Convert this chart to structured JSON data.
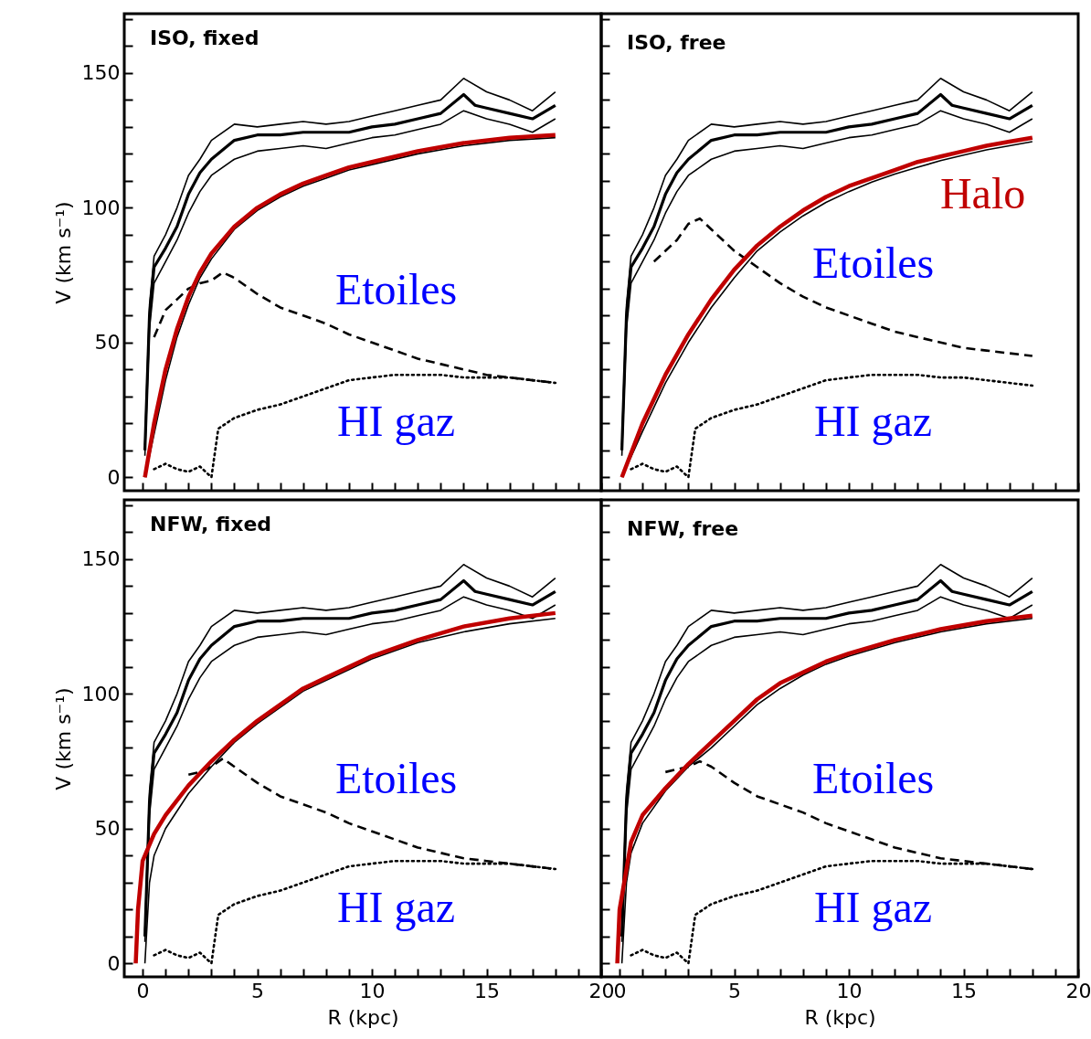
{
  "chart_data": [
    {
      "type": "line",
      "title": "ISO, fixed",
      "ylabel": "V (km s⁻¹)",
      "xlim": [
        -0.8,
        20
      ],
      "ylim": [
        -5,
        172
      ],
      "tick_labels": "y",
      "grid": false,
      "marker": "none",
      "xticks": [
        {
          "value": 0,
          "label": null
        },
        {
          "value": 1,
          "label": null
        },
        {
          "value": 2,
          "label": null
        },
        {
          "value": 3,
          "label": null
        },
        {
          "value": 4,
          "label": null
        },
        {
          "value": 5,
          "label": null
        },
        {
          "value": 6,
          "label": null
        },
        {
          "value": 7,
          "label": null
        },
        {
          "value": 8,
          "label": null
        },
        {
          "value": 9,
          "label": null
        },
        {
          "value": 10,
          "label": null
        },
        {
          "value": 11,
          "label": null
        },
        {
          "value": 12,
          "label": null
        },
        {
          "value": 13,
          "label": null
        },
        {
          "value": 14,
          "label": null
        },
        {
          "value": 15,
          "label": null
        },
        {
          "value": 16,
          "label": null
        },
        {
          "value": 17,
          "label": null
        },
        {
          "value": 18,
          "label": null
        },
        {
          "value": 19,
          "label": null
        },
        {
          "value": 20,
          "label": null
        }
      ],
      "yticks": [
        0,
        {
          "value": 10,
          "label": null
        },
        {
          "value": 20,
          "label": null
        },
        {
          "value": 30,
          "label": null
        },
        {
          "value": 40,
          "label": null
        },
        50,
        {
          "value": 60,
          "label": null
        },
        {
          "value": 70,
          "label": null
        },
        {
          "value": 80,
          "label": null
        },
        {
          "value": 90,
          "label": null
        },
        100,
        {
          "value": 110,
          "label": null
        },
        {
          "value": 120,
          "label": null
        },
        {
          "value": 130,
          "label": null
        },
        {
          "value": 140,
          "label": null
        },
        150,
        {
          "value": 160,
          "label": null
        },
        {
          "value": 170,
          "label": null
        }
      ],
      "series": [
        {
          "color": "#000000",
          "line_style": "solid",
          "x": [
            0.1,
            0.3,
            0.5,
            1,
            1.5,
            2,
            2.5,
            3,
            4,
            5,
            6,
            7,
            8,
            9,
            10,
            11,
            12,
            13,
            14,
            14.5,
            15,
            16,
            17,
            18
          ],
          "values": [
            10,
            60,
            78,
            85,
            93,
            105,
            113,
            118,
            125,
            127,
            127,
            128,
            128,
            128,
            130,
            131,
            133,
            135,
            142,
            138,
            137,
            135,
            133,
            138
          ]
        },
        {
          "color": "#000000",
          "line_style": "solid",
          "x": [
            0.1,
            0.3,
            0.5,
            1,
            1.5,
            2,
            2.5,
            3,
            4,
            5,
            6,
            7,
            8,
            9,
            10,
            11,
            12,
            13,
            14,
            15,
            16,
            17,
            18
          ],
          "values": [
            12,
            64,
            82,
            90,
            100,
            112,
            118,
            125,
            131,
            130,
            131,
            132,
            131,
            132,
            134,
            136,
            138,
            140,
            148,
            143,
            140,
            136,
            143
          ]
        },
        {
          "color": "#000000",
          "line_style": "solid",
          "x": [
            0.1,
            0.3,
            0.5,
            1,
            1.5,
            2,
            2.5,
            3,
            4,
            5,
            6,
            7,
            8,
            9,
            10,
            11,
            12,
            13,
            14,
            15,
            16,
            17,
            18
          ],
          "values": [
            8,
            55,
            72,
            80,
            88,
            98,
            106,
            112,
            118,
            121,
            122,
            123,
            122,
            124,
            126,
            127,
            129,
            131,
            136,
            133,
            131,
            128,
            133
          ]
        },
        {
          "color": "#000000",
          "line_style": "solid",
          "x": [
            0.1,
            0.5,
            1,
            1.5,
            2,
            2.5,
            3,
            4,
            5,
            6,
            7,
            8,
            9,
            10,
            12,
            14,
            16,
            18
          ],
          "values": [
            0,
            16,
            36,
            52,
            64,
            74,
            81,
            92,
            99,
            104,
            108,
            111,
            114,
            116,
            120,
            123,
            125,
            126
          ]
        },
        {
          "name": "HI gaz",
          "color": "#000000",
          "line_style": "dotted",
          "x": [
            0.5,
            1,
            1.5,
            2,
            2.5,
            3,
            3.3,
            4,
            5,
            6,
            7,
            8,
            9,
            10,
            11,
            12,
            13,
            14,
            15,
            16,
            17,
            18
          ],
          "values": [
            3,
            5,
            3,
            2,
            4,
            0,
            18,
            22,
            25,
            27,
            30,
            33,
            36,
            37,
            38,
            38,
            38,
            37,
            37,
            37,
            36,
            35
          ]
        },
        {
          "name": "Etoiles",
          "color": "#000000",
          "line_style": "dashed",
          "x": [
            0.5,
            1,
            1.5,
            2,
            2.5,
            3,
            3.5,
            4,
            5,
            6,
            7,
            8,
            9,
            10,
            11,
            12,
            13,
            14,
            15,
            16,
            17,
            18
          ],
          "values": [
            52,
            62,
            66,
            70,
            72,
            73,
            76,
            74,
            68,
            63,
            60,
            57,
            53,
            50,
            47,
            44,
            42,
            40,
            38,
            37,
            36,
            35
          ]
        },
        {
          "color": "#c00000",
          "line_style": "solid",
          "x": [
            0.1,
            0.5,
            1,
            1.5,
            2,
            2.5,
            3,
            4,
            5,
            6,
            7,
            8,
            9,
            10,
            12,
            14,
            16,
            18
          ],
          "values": [
            0,
            20,
            40,
            55,
            67,
            76,
            83,
            93,
            100,
            105,
            109,
            112,
            115,
            117,
            121,
            124,
            126,
            127
          ]
        }
      ]
    },
    {
      "type": "line",
      "title": "ISO, free",
      "xlim": [
        -0.8,
        20
      ],
      "ylim": [
        -5,
        172
      ],
      "tick_labels": false,
      "grid": false,
      "marker": "none",
      "xticks": [
        {
          "value": 0,
          "label": null
        },
        {
          "value": 1,
          "label": null
        },
        {
          "value": 2,
          "label": null
        },
        {
          "value": 3,
          "label": null
        },
        {
          "value": 4,
          "label": null
        },
        {
          "value": 5,
          "label": null
        },
        {
          "value": 6,
          "label": null
        },
        {
          "value": 7,
          "label": null
        },
        {
          "value": 8,
          "label": null
        },
        {
          "value": 9,
          "label": null
        },
        {
          "value": 10,
          "label": null
        },
        {
          "value": 11,
          "label": null
        },
        {
          "value": 12,
          "label": null
        },
        {
          "value": 13,
          "label": null
        },
        {
          "value": 14,
          "label": null
        },
        {
          "value": 15,
          "label": null
        },
        {
          "value": 16,
          "label": null
        },
        {
          "value": 17,
          "label": null
        },
        {
          "value": 18,
          "label": null
        },
        {
          "value": 19,
          "label": null
        },
        {
          "value": 20,
          "label": null
        }
      ],
      "yticks": [
        {
          "value": 0,
          "label": null
        },
        {
          "value": 10,
          "label": null
        },
        {
          "value": 20,
          "label": null
        },
        {
          "value": 30,
          "label": null
        },
        {
          "value": 40,
          "label": null
        },
        {
          "value": 50,
          "label": null
        },
        {
          "value": 60,
          "label": null
        },
        {
          "value": 70,
          "label": null
        },
        {
          "value": 80,
          "label": null
        },
        {
          "value": 90,
          "label": null
        },
        {
          "value": 100,
          "label": null
        },
        {
          "value": 110,
          "label": null
        },
        {
          "value": 120,
          "label": null
        },
        {
          "value": 130,
          "label": null
        },
        {
          "value": 140,
          "label": null
        },
        {
          "value": 150,
          "label": null
        },
        {
          "value": 160,
          "label": null
        },
        {
          "value": 170,
          "label": null
        }
      ],
      "series": [
        {
          "color": "#000000",
          "line_style": "solid",
          "x": [
            0.1,
            0.3,
            0.5,
            1,
            1.5,
            2,
            2.5,
            3,
            4,
            5,
            6,
            7,
            8,
            9,
            10,
            11,
            12,
            13,
            14,
            14.5,
            15,
            16,
            17,
            18
          ],
          "values": [
            10,
            60,
            78,
            85,
            93,
            105,
            113,
            118,
            125,
            127,
            127,
            128,
            128,
            128,
            130,
            131,
            133,
            135,
            142,
            138,
            137,
            135,
            133,
            138
          ]
        },
        {
          "color": "#000000",
          "line_style": "solid",
          "x": [
            0.1,
            0.3,
            0.5,
            1,
            1.5,
            2,
            2.5,
            3,
            4,
            5,
            6,
            7,
            8,
            9,
            10,
            11,
            12,
            13,
            14,
            15,
            16,
            17,
            18
          ],
          "values": [
            12,
            64,
            82,
            90,
            100,
            112,
            118,
            125,
            131,
            130,
            131,
            132,
            131,
            132,
            134,
            136,
            138,
            140,
            148,
            143,
            140,
            136,
            143
          ]
        },
        {
          "color": "#000000",
          "line_style": "solid",
          "x": [
            0.1,
            0.3,
            0.5,
            1,
            1.5,
            2,
            2.5,
            3,
            4,
            5,
            6,
            7,
            8,
            9,
            10,
            11,
            12,
            13,
            14,
            15,
            16,
            17,
            18
          ],
          "values": [
            8,
            55,
            72,
            80,
            88,
            98,
            106,
            112,
            118,
            121,
            122,
            123,
            122,
            124,
            126,
            127,
            129,
            131,
            136,
            133,
            131,
            128,
            133
          ]
        },
        {
          "color": "#000000",
          "line_style": "solid",
          "x": [
            0.1,
            1,
            2,
            3,
            4,
            5,
            6,
            7,
            8,
            9,
            10,
            11,
            12,
            13,
            14,
            15,
            16,
            17,
            18
          ],
          "values": [
            0,
            17,
            35,
            50,
            63,
            74,
            84,
            91,
            97,
            102,
            106,
            109.5,
            112.5,
            115,
            117.5,
            119.5,
            121.5,
            123,
            124.5
          ]
        },
        {
          "name": "HI gaz",
          "color": "#000000",
          "line_style": "dotted",
          "x": [
            0.5,
            1,
            1.5,
            2,
            2.5,
            3,
            3.3,
            4,
            5,
            6,
            7,
            8,
            9,
            10,
            11,
            12,
            13,
            14,
            15,
            16,
            17,
            18
          ],
          "values": [
            3,
            5,
            3,
            2,
            4,
            0,
            18,
            22,
            25,
            27,
            30,
            33,
            36,
            37,
            38,
            38,
            38,
            37,
            37,
            36,
            35,
            34
          ]
        },
        {
          "name": "Etoiles",
          "color": "#000000",
          "line_style": "dashed",
          "x": [
            1.5,
            2,
            2.5,
            3,
            3.5,
            4,
            5,
            6,
            7,
            8,
            9,
            10,
            11,
            12,
            13,
            14,
            15,
            16,
            17,
            18
          ],
          "values": [
            80,
            84,
            88,
            94,
            96,
            92,
            84,
            78,
            72,
            67,
            63,
            60,
            57,
            54,
            52,
            50,
            48,
            47,
            46,
            45
          ]
        },
        {
          "name": "Halo",
          "color": "#c00000",
          "line_style": "solid",
          "x": [
            0.1,
            1,
            2,
            3,
            4,
            5,
            6,
            7,
            8,
            9,
            10,
            11,
            12,
            13,
            14,
            15,
            16,
            17,
            18
          ],
          "values": [
            0,
            20,
            38,
            53,
            66,
            77,
            86,
            93,
            99,
            104,
            108,
            111,
            114,
            117,
            119,
            121,
            123,
            124.5,
            126
          ]
        }
      ]
    },
    {
      "type": "line",
      "title": "NFW, fixed",
      "xlabel": "R (kpc)",
      "ylabel": "V (km s⁻¹)",
      "xlim": [
        -0.8,
        20
      ],
      "ylim": [
        -5,
        172
      ],
      "grid": false,
      "marker": "none",
      "xticks": [
        0,
        {
          "value": 1,
          "label": null
        },
        {
          "value": 2,
          "label": null
        },
        {
          "value": 3,
          "label": null
        },
        {
          "value": 4,
          "label": null
        },
        5,
        {
          "value": 6,
          "label": null
        },
        {
          "value": 7,
          "label": null
        },
        {
          "value": 8,
          "label": null
        },
        {
          "value": 9,
          "label": null
        },
        10,
        {
          "value": 11,
          "label": null
        },
        {
          "value": 12,
          "label": null
        },
        {
          "value": 13,
          "label": null
        },
        {
          "value": 14,
          "label": null
        },
        15,
        {
          "value": 16,
          "label": null
        },
        {
          "value": 17,
          "label": null
        },
        {
          "value": 18,
          "label": null
        },
        {
          "value": 19,
          "label": null
        },
        20
      ],
      "yticks": [
        0,
        {
          "value": 10,
          "label": null
        },
        {
          "value": 20,
          "label": null
        },
        {
          "value": 30,
          "label": null
        },
        {
          "value": 40,
          "label": null
        },
        50,
        {
          "value": 60,
          "label": null
        },
        {
          "value": 70,
          "label": null
        },
        {
          "value": 80,
          "label": null
        },
        {
          "value": 90,
          "label": null
        },
        100,
        {
          "value": 110,
          "label": null
        },
        {
          "value": 120,
          "label": null
        },
        {
          "value": 130,
          "label": null
        },
        {
          "value": 140,
          "label": null
        },
        150,
        {
          "value": 160,
          "label": null
        },
        {
          "value": 170,
          "label": null
        }
      ],
      "series": [
        {
          "color": "#000000",
          "line_style": "solid",
          "x": [
            0.1,
            0.3,
            0.5,
            1,
            1.5,
            2,
            2.5,
            3,
            4,
            5,
            6,
            7,
            8,
            9,
            10,
            11,
            12,
            13,
            14,
            14.5,
            15,
            16,
            17,
            18
          ],
          "values": [
            10,
            60,
            78,
            85,
            93,
            105,
            113,
            118,
            125,
            127,
            127,
            128,
            128,
            128,
            130,
            131,
            133,
            135,
            142,
            138,
            137,
            135,
            133,
            138
          ]
        },
        {
          "color": "#000000",
          "line_style": "solid",
          "x": [
            0.1,
            0.3,
            0.5,
            1,
            1.5,
            2,
            2.5,
            3,
            4,
            5,
            6,
            7,
            8,
            9,
            10,
            11,
            12,
            13,
            14,
            15,
            16,
            17,
            18
          ],
          "values": [
            12,
            64,
            82,
            90,
            100,
            112,
            118,
            125,
            131,
            130,
            131,
            132,
            131,
            132,
            134,
            136,
            138,
            140,
            148,
            143,
            140,
            136,
            143
          ]
        },
        {
          "color": "#000000",
          "line_style": "solid",
          "x": [
            0.1,
            0.3,
            0.5,
            1,
            1.5,
            2,
            2.5,
            3,
            4,
            5,
            6,
            7,
            8,
            9,
            10,
            11,
            12,
            13,
            14,
            15,
            16,
            17,
            18
          ],
          "values": [
            8,
            55,
            72,
            80,
            88,
            98,
            106,
            112,
            118,
            121,
            122,
            123,
            122,
            124,
            126,
            127,
            129,
            131,
            136,
            133,
            131,
            128,
            133
          ]
        },
        {
          "color": "#000000",
          "line_style": "solid",
          "x": [
            0.1,
            0.3,
            0.5,
            1,
            2,
            3,
            4,
            5,
            6,
            7,
            8,
            9,
            10,
            12,
            14,
            16,
            18
          ],
          "values": [
            0,
            30,
            40,
            50,
            63,
            73,
            82,
            89,
            95,
            101,
            105,
            109,
            113,
            119,
            123,
            126,
            128
          ]
        },
        {
          "name": "HI gaz",
          "color": "#000000",
          "line_style": "dotted",
          "x": [
            0.5,
            1,
            1.5,
            2,
            2.5,
            3,
            3.3,
            4,
            5,
            6,
            7,
            8,
            9,
            10,
            11,
            12,
            13,
            14,
            15,
            16,
            17,
            18
          ],
          "values": [
            3,
            5,
            3,
            2,
            4,
            0,
            18,
            22,
            25,
            27,
            30,
            33,
            36,
            37,
            38,
            38,
            38,
            37,
            37,
            37,
            36,
            35
          ]
        },
        {
          "name": "Etoiles",
          "color": "#000000",
          "line_style": "dashed",
          "x": [
            2,
            2.5,
            3,
            3.5,
            4,
            5,
            6,
            7,
            8,
            9,
            10,
            11,
            12,
            13,
            14,
            15,
            16,
            17,
            18
          ],
          "values": [
            70,
            71,
            73,
            76,
            73,
            67,
            62,
            59,
            56,
            52,
            49,
            46,
            43,
            41,
            39,
            38,
            37,
            36,
            35
          ]
        },
        {
          "color": "#c00000",
          "line_style": "solid",
          "x": [
            -0.3,
            -0.2,
            0,
            0.5,
            1,
            2,
            3,
            4,
            5,
            6,
            7,
            8,
            9,
            10,
            12,
            14,
            16,
            18
          ],
          "values": [
            0,
            20,
            38,
            48,
            55,
            66,
            75,
            83,
            90,
            96,
            102,
            106,
            110,
            114,
            120,
            125,
            128,
            130
          ]
        }
      ]
    },
    {
      "type": "line",
      "title": "NFW, free",
      "xlabel": "R (kpc)",
      "xlim": [
        -0.8,
        20
      ],
      "ylim": [
        -5,
        172
      ],
      "tick_labels": "x",
      "grid": false,
      "marker": "none",
      "xticks": [
        0,
        {
          "value": 1,
          "label": null
        },
        {
          "value": 2,
          "label": null
        },
        {
          "value": 3,
          "label": null
        },
        {
          "value": 4,
          "label": null
        },
        5,
        {
          "value": 6,
          "label": null
        },
        {
          "value": 7,
          "label": null
        },
        {
          "value": 8,
          "label": null
        },
        {
          "value": 9,
          "label": null
        },
        10,
        {
          "value": 11,
          "label": null
        },
        {
          "value": 12,
          "label": null
        },
        {
          "value": 13,
          "label": null
        },
        {
          "value": 14,
          "label": null
        },
        15,
        {
          "value": 16,
          "label": null
        },
        {
          "value": 17,
          "label": null
        },
        {
          "value": 18,
          "label": null
        },
        {
          "value": 19,
          "label": null
        },
        20
      ],
      "yticks": [
        {
          "value": 0,
          "label": null
        },
        {
          "value": 10,
          "label": null
        },
        {
          "value": 20,
          "label": null
        },
        {
          "value": 30,
          "label": null
        },
        {
          "value": 40,
          "label": null
        },
        {
          "value": 50,
          "label": null
        },
        {
          "value": 60,
          "label": null
        },
        {
          "value": 70,
          "label": null
        },
        {
          "value": 80,
          "label": null
        },
        {
          "value": 90,
          "label": null
        },
        {
          "value": 100,
          "label": null
        },
        {
          "value": 110,
          "label": null
        },
        {
          "value": 120,
          "label": null
        },
        {
          "value": 130,
          "label": null
        },
        {
          "value": 140,
          "label": null
        },
        {
          "value": 150,
          "label": null
        },
        {
          "value": 160,
          "label": null
        },
        {
          "value": 170,
          "label": null
        }
      ],
      "series": [
        {
          "color": "#000000",
          "line_style": "solid",
          "x": [
            0.1,
            0.3,
            0.5,
            1,
            1.5,
            2,
            2.5,
            3,
            4,
            5,
            6,
            7,
            8,
            9,
            10,
            11,
            12,
            13,
            14,
            14.5,
            15,
            16,
            17,
            18
          ],
          "values": [
            10,
            60,
            78,
            85,
            93,
            105,
            113,
            118,
            125,
            127,
            127,
            128,
            128,
            128,
            130,
            131,
            133,
            135,
            142,
            138,
            137,
            135,
            133,
            138
          ]
        },
        {
          "color": "#000000",
          "line_style": "solid",
          "x": [
            0.1,
            0.3,
            0.5,
            1,
            1.5,
            2,
            2.5,
            3,
            4,
            5,
            6,
            7,
            8,
            9,
            10,
            11,
            12,
            13,
            14,
            15,
            16,
            17,
            18
          ],
          "values": [
            12,
            64,
            82,
            90,
            100,
            112,
            118,
            125,
            131,
            130,
            131,
            132,
            131,
            132,
            134,
            136,
            138,
            140,
            148,
            143,
            140,
            136,
            143
          ]
        },
        {
          "color": "#000000",
          "line_style": "solid",
          "x": [
            0.1,
            0.3,
            0.5,
            1,
            1.5,
            2,
            2.5,
            3,
            4,
            5,
            6,
            7,
            8,
            9,
            10,
            11,
            12,
            13,
            14,
            15,
            16,
            17,
            18
          ],
          "values": [
            8,
            55,
            72,
            80,
            88,
            98,
            106,
            112,
            118,
            121,
            122,
            123,
            122,
            124,
            126,
            127,
            129,
            131,
            136,
            133,
            131,
            128,
            133
          ]
        },
        {
          "color": "#000000",
          "line_style": "solid",
          "x": [
            0.1,
            0.3,
            0.5,
            1,
            2,
            3,
            4,
            5,
            6,
            7,
            8,
            9,
            10,
            12,
            14,
            16,
            18
          ],
          "values": [
            0,
            30,
            41,
            52,
            64,
            73,
            80,
            88,
            96,
            102,
            107,
            111,
            114,
            119,
            123,
            126,
            128
          ]
        },
        {
          "name": "HI gaz",
          "color": "#000000",
          "line_style": "dotted",
          "x": [
            0.5,
            1,
            1.5,
            2,
            2.5,
            3,
            3.3,
            4,
            5,
            6,
            7,
            8,
            9,
            10,
            11,
            12,
            13,
            14,
            15,
            16,
            17,
            18
          ],
          "values": [
            3,
            5,
            3,
            2,
            4,
            0,
            18,
            22,
            25,
            27,
            30,
            33,
            36,
            37,
            38,
            38,
            38,
            37,
            37,
            37,
            36,
            35
          ]
        },
        {
          "name": "Etoiles",
          "color": "#000000",
          "line_style": "dashed",
          "x": [
            2,
            2.5,
            3,
            3.5,
            4,
            5,
            6,
            7,
            8,
            9,
            10,
            11,
            12,
            13,
            14,
            15,
            16,
            17,
            18
          ],
          "values": [
            71,
            72,
            73,
            75,
            73,
            67,
            62,
            59,
            56,
            52,
            49,
            46,
            43,
            41,
            39,
            38,
            37,
            36,
            35
          ]
        },
        {
          "color": "#c00000",
          "line_style": "solid",
          "x": [
            -0.1,
            0,
            0.2,
            0.5,
            1,
            2,
            3,
            4,
            5,
            6,
            7,
            8,
            9,
            10,
            12,
            14,
            16,
            18
          ],
          "values": [
            0,
            20,
            30,
            45,
            55,
            65,
            74,
            82,
            90,
            98,
            104,
            108,
            112,
            115,
            120,
            124,
            127,
            129
          ]
        }
      ]
    }
  ]
}
